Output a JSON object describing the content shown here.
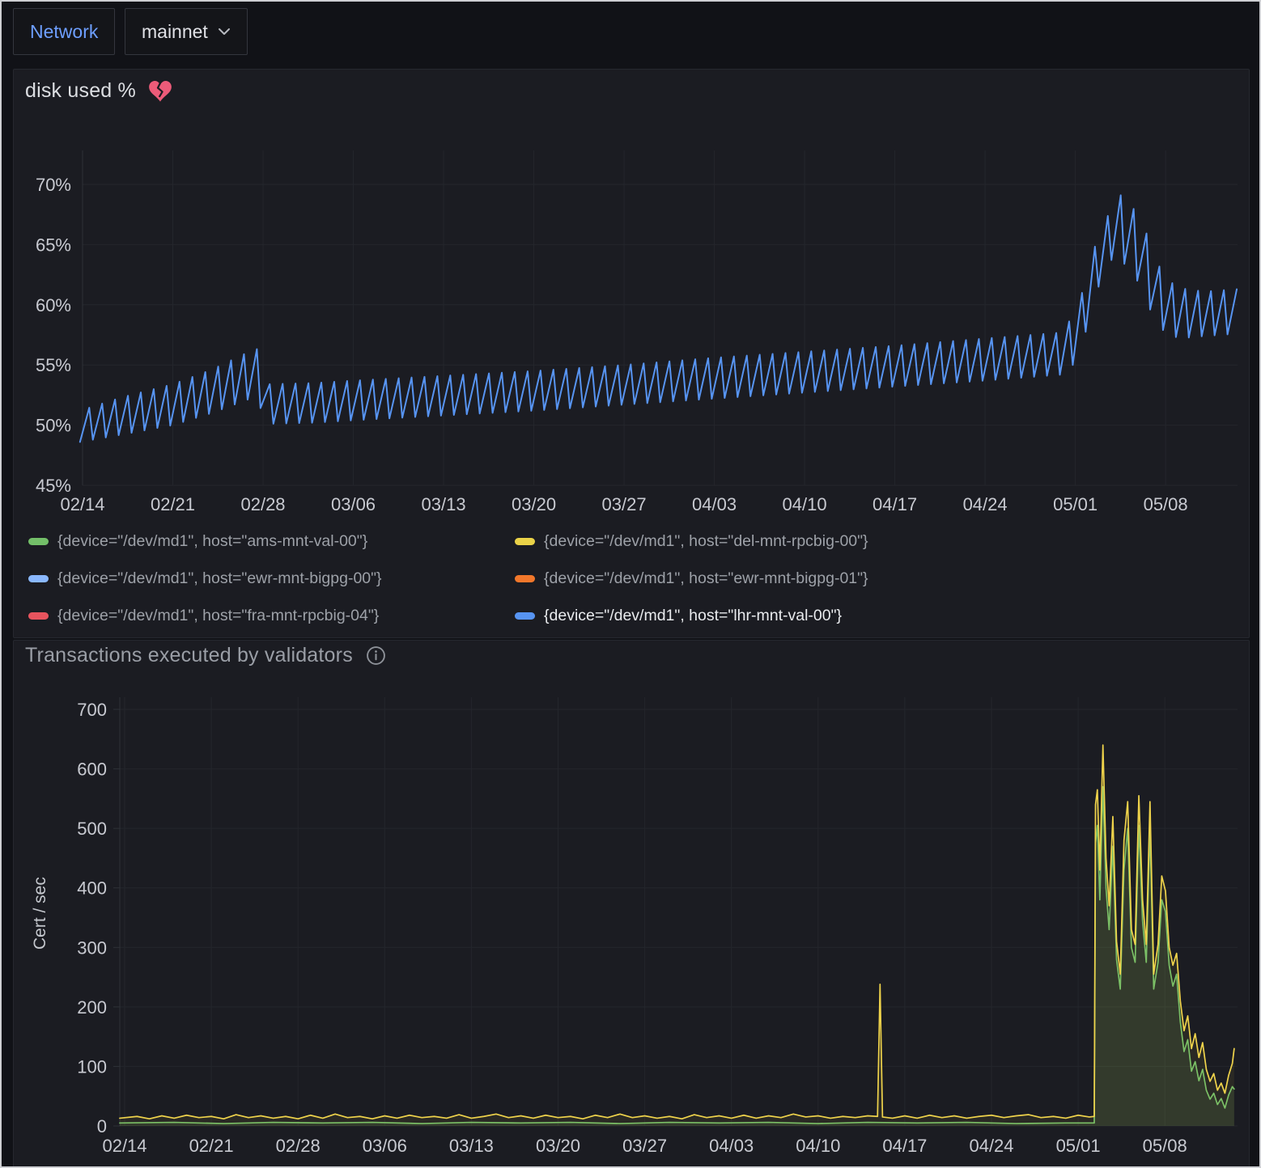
{
  "toolbar": {
    "variable_label": "Network",
    "variable_value": "mainnet"
  },
  "panels": {
    "disk": {
      "title": "disk used %",
      "status_icon": "broken-heart-icon",
      "status_color": "#ec5b79",
      "legend": [
        {
          "label": "{device=\"/dev/md1\", host=\"ams-mnt-val-00\"}",
          "color": "#73BF69",
          "highlighted": false
        },
        {
          "label": "{device=\"/dev/md1\", host=\"del-mnt-rpcbig-00\"}",
          "color": "#EAD248",
          "highlighted": false
        },
        {
          "label": "{device=\"/dev/md1\", host=\"ewr-mnt-bigpg-00\"}",
          "color": "#8AB8FF",
          "highlighted": false
        },
        {
          "label": "{device=\"/dev/md1\", host=\"ewr-mnt-bigpg-01\"}",
          "color": "#F2772B",
          "highlighted": false
        },
        {
          "label": "{device=\"/dev/md1\", host=\"fra-mnt-rpcbig-04\"}",
          "color": "#E8545E",
          "highlighted": false
        },
        {
          "label": "{device=\"/dev/md1\", host=\"lhr-mnt-val-00\"}",
          "color": "#5794F2",
          "highlighted": true
        }
      ]
    },
    "tx": {
      "title": "Transactions executed by validators",
      "ylabel": "Cert / sec"
    }
  },
  "chart_data": [
    {
      "id": "disk_used_percent",
      "type": "line",
      "title": "disk used %",
      "xlabel": "",
      "ylabel": "",
      "y_tick_suffix": "%",
      "y_ticks": [
        45,
        50,
        55,
        60,
        65,
        70
      ],
      "ylim": [
        45,
        72.5
      ],
      "x_tick_labels": [
        "02/14",
        "02/21",
        "02/28",
        "03/06",
        "03/13",
        "03/20",
        "03/27",
        "04/03",
        "04/10",
        "04/17",
        "04/24",
        "05/01",
        "05/08"
      ],
      "x_tick_days": [
        0,
        7,
        14,
        21,
        28,
        35,
        42,
        49,
        56,
        63,
        70,
        77,
        84
      ],
      "x_range_days": [
        -0.2,
        89.6
      ],
      "grid": true,
      "legend_position": "bottom",
      "only_visible_series": "{device=\"/dev/md1\", host=\"lhr-mnt-val-00\"}",
      "series": [
        {
          "name": "{device=\"/dev/md1\", host=\"lhr-mnt-val-00\"}",
          "color": "#5794F2",
          "pattern": "daily_sawtooth",
          "tooth_period_days": 1,
          "tooth_peak_fraction": 0.72,
          "envelope_day_low_high": [
            [
              -0.2,
              48.6,
              51.2
            ],
            [
              3,
              49.2,
              52.3
            ],
            [
              7,
              50.0,
              53.4
            ],
            [
              10,
              51.0,
              54.6
            ],
            [
              13.5,
              52.4,
              56.4
            ],
            [
              14.2,
              50.1,
              53.4
            ],
            [
              18,
              50.2,
              53.5
            ],
            [
              21,
              50.4,
              53.7
            ],
            [
              28,
              50.8,
              54.1
            ],
            [
              35,
              51.2,
              54.5
            ],
            [
              42,
              51.7,
              55.0
            ],
            [
              49,
              52.2,
              55.6
            ],
            [
              56,
              52.7,
              56.1
            ],
            [
              63,
              53.2,
              56.6
            ],
            [
              70,
              53.7,
              57.2
            ],
            [
              76,
              54.2,
              57.7
            ],
            [
              77.3,
              55.5,
              60.0
            ],
            [
              78.3,
              60.0,
              64.5
            ],
            [
              79.3,
              63.0,
              66.0
            ],
            [
              80.0,
              64.0,
              70.4
            ],
            [
              80.8,
              63.4,
              68.4
            ],
            [
              81.8,
              62.0,
              67.8
            ],
            [
              82.8,
              59.6,
              65.2
            ],
            [
              83.8,
              57.9,
              62.4
            ],
            [
              85,
              57.2,
              61.4
            ],
            [
              87,
              57.4,
              61.1
            ],
            [
              89.6,
              57.6,
              61.3
            ]
          ]
        }
      ]
    },
    {
      "id": "transactions_by_validators",
      "type": "line",
      "title": "Transactions executed by validators",
      "xlabel": "",
      "ylabel": "Cert / sec",
      "y_ticks": [
        0,
        100,
        200,
        300,
        400,
        500,
        600,
        700
      ],
      "ylim": [
        0,
        730
      ],
      "x_tick_labels": [
        "02/14",
        "02/21",
        "02/28",
        "03/06",
        "03/13",
        "03/20",
        "03/27",
        "04/03",
        "04/10",
        "04/17",
        "04/24",
        "05/01",
        "05/08"
      ],
      "x_tick_days": [
        0,
        7,
        14,
        21,
        28,
        35,
        42,
        49,
        56,
        63,
        70,
        77,
        84
      ],
      "x_range_days": [
        -0.4,
        89.6
      ],
      "grid": true,
      "legend_position": "none",
      "series": [
        {
          "name": "series-green",
          "color": "#73BF69",
          "fill_opacity": 0.12,
          "points_day_value": [
            [
              -0.4,
              5
            ],
            [
              4,
              6
            ],
            [
              8,
              4
            ],
            [
              12,
              6
            ],
            [
              16,
              5
            ],
            [
              20,
              6
            ],
            [
              24,
              4
            ],
            [
              28,
              6
            ],
            [
              32,
              5
            ],
            [
              36,
              6
            ],
            [
              40,
              4
            ],
            [
              44,
              6
            ],
            [
              48,
              5
            ],
            [
              52,
              6
            ],
            [
              56,
              4
            ],
            [
              60,
              6
            ],
            [
              64,
              5
            ],
            [
              68,
              6
            ],
            [
              72,
              4
            ],
            [
              76,
              5
            ],
            [
              77.9,
              5
            ],
            [
              78.3,
              5
            ],
            [
              78.4,
              475
            ],
            [
              78.55,
              505
            ],
            [
              78.75,
              380
            ],
            [
              79.0,
              570
            ],
            [
              79.25,
              400
            ],
            [
              79.5,
              330
            ],
            [
              79.8,
              470
            ],
            [
              80.1,
              280
            ],
            [
              80.4,
              230
            ],
            [
              80.7,
              430
            ],
            [
              81.0,
              500
            ],
            [
              81.3,
              300
            ],
            [
              81.6,
              275
            ],
            [
              81.9,
              505
            ],
            [
              82.2,
              345
            ],
            [
              82.5,
              275
            ],
            [
              82.8,
              500
            ],
            [
              83.1,
              230
            ],
            [
              83.45,
              275
            ],
            [
              83.75,
              380
            ],
            [
              84.05,
              360
            ],
            [
              84.35,
              270
            ],
            [
              84.65,
              235
            ],
            [
              84.95,
              255
            ],
            [
              85.25,
              175
            ],
            [
              85.55,
              125
            ],
            [
              85.85,
              145
            ],
            [
              86.15,
              92
            ],
            [
              86.45,
              108
            ],
            [
              86.75,
              76
            ],
            [
              87.05,
              95
            ],
            [
              87.35,
              60
            ],
            [
              87.65,
              45
            ],
            [
              87.95,
              55
            ],
            [
              88.25,
              36
            ],
            [
              88.55,
              46
            ],
            [
              88.85,
              30
            ],
            [
              89.15,
              52
            ],
            [
              89.45,
              66
            ],
            [
              89.6,
              62
            ]
          ]
        },
        {
          "name": "series-yellow",
          "color": "#EFD34B",
          "fill_opacity": 0.07,
          "points_day_value": [
            [
              -0.4,
              13
            ],
            [
              1,
              16
            ],
            [
              2,
              12
            ],
            [
              3,
              17
            ],
            [
              4,
              13
            ],
            [
              5,
              18
            ],
            [
              6,
              14
            ],
            [
              7,
              16
            ],
            [
              8,
              12
            ],
            [
              9,
              19
            ],
            [
              10,
              14
            ],
            [
              11,
              17
            ],
            [
              12,
              13
            ],
            [
              13,
              16
            ],
            [
              14,
              12
            ],
            [
              15,
              18
            ],
            [
              16,
              13
            ],
            [
              17,
              20
            ],
            [
              18,
              14
            ],
            [
              19,
              16
            ],
            [
              20,
              12
            ],
            [
              21,
              17
            ],
            [
              22,
              13
            ],
            [
              23,
              18
            ],
            [
              24,
              14
            ],
            [
              25,
              16
            ],
            [
              26,
              13
            ],
            [
              27,
              19
            ],
            [
              28,
              13
            ],
            [
              29,
              16
            ],
            [
              30,
              20
            ],
            [
              31,
              14
            ],
            [
              32,
              17
            ],
            [
              33,
              13
            ],
            [
              34,
              18
            ],
            [
              35,
              14
            ],
            [
              36,
              16
            ],
            [
              37,
              12
            ],
            [
              38,
              18
            ],
            [
              39,
              14
            ],
            [
              40,
              20
            ],
            [
              41,
              14
            ],
            [
              42,
              17
            ],
            [
              43,
              13
            ],
            [
              44,
              16
            ],
            [
              45,
              12
            ],
            [
              46,
              19
            ],
            [
              47,
              14
            ],
            [
              48,
              17
            ],
            [
              49,
              13
            ],
            [
              50,
              18
            ],
            [
              51,
              13
            ],
            [
              52,
              17
            ],
            [
              53,
              14
            ],
            [
              54,
              20
            ],
            [
              55,
              15
            ],
            [
              56,
              17
            ],
            [
              57,
              13
            ],
            [
              58,
              16
            ],
            [
              59,
              14
            ],
            [
              60,
              17
            ],
            [
              60.8,
              16
            ],
            [
              61,
              238
            ],
            [
              61.2,
              15
            ],
            [
              62,
              13
            ],
            [
              63,
              17
            ],
            [
              64,
              13
            ],
            [
              65,
              18
            ],
            [
              66,
              14
            ],
            [
              67,
              17
            ],
            [
              68,
              13
            ],
            [
              69,
              16
            ],
            [
              70,
              18
            ],
            [
              71,
              14
            ],
            [
              72,
              17
            ],
            [
              73,
              19
            ],
            [
              74,
              14
            ],
            [
              75,
              16
            ],
            [
              76,
              13
            ],
            [
              77,
              18
            ],
            [
              77.9,
              15
            ],
            [
              78.3,
              16
            ],
            [
              78.4,
              540
            ],
            [
              78.55,
              565
            ],
            [
              78.75,
              430
            ],
            [
              79.0,
              640
            ],
            [
              79.25,
              450
            ],
            [
              79.5,
              370
            ],
            [
              79.8,
              520
            ],
            [
              80.1,
              310
            ],
            [
              80.4,
              255
            ],
            [
              80.7,
              480
            ],
            [
              81.0,
              545
            ],
            [
              81.3,
              330
            ],
            [
              81.6,
              305
            ],
            [
              81.9,
              555
            ],
            [
              82.2,
              380
            ],
            [
              82.5,
              305
            ],
            [
              82.8,
              545
            ],
            [
              83.1,
              255
            ],
            [
              83.45,
              305
            ],
            [
              83.75,
              420
            ],
            [
              84.05,
              395
            ],
            [
              84.35,
              300
            ],
            [
              84.65,
              270
            ],
            [
              84.95,
              290
            ],
            [
              85.25,
              210
            ],
            [
              85.55,
              160
            ],
            [
              85.85,
              185
            ],
            [
              86.15,
              130
            ],
            [
              86.45,
              155
            ],
            [
              86.75,
              115
            ],
            [
              87.05,
              140
            ],
            [
              87.35,
              95
            ],
            [
              87.65,
              75
            ],
            [
              87.95,
              88
            ],
            [
              88.25,
              60
            ],
            [
              88.55,
              72
            ],
            [
              88.85,
              55
            ],
            [
              89.15,
              85
            ],
            [
              89.45,
              105
            ],
            [
              89.6,
              130
            ]
          ]
        }
      ]
    }
  ]
}
